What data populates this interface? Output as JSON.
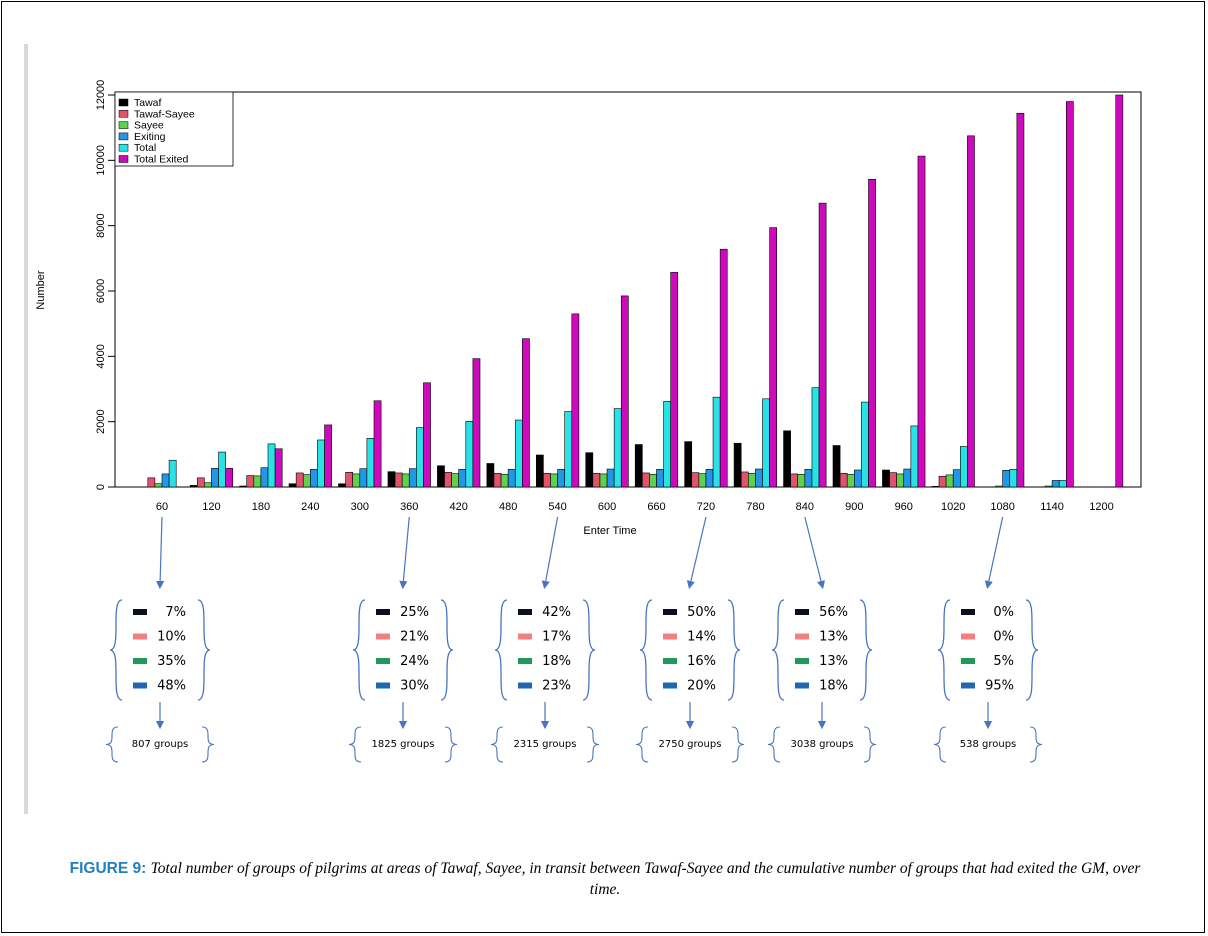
{
  "chart_data": {
    "type": "bar",
    "xlabel": "Enter Time",
    "ylabel": "Number",
    "ylim": [
      0,
      12000
    ],
    "yticks": [
      0,
      2000,
      4000,
      6000,
      8000,
      10000,
      12000
    ],
    "legend_position": "top-left",
    "categories": [
      "60",
      "120",
      "180",
      "240",
      "300",
      "360",
      "420",
      "480",
      "540",
      "600",
      "660",
      "720",
      "780",
      "840",
      "900",
      "960",
      "1020",
      "1080",
      "1140",
      "1200"
    ],
    "series": [
      {
        "name": "Tawaf",
        "color": "#000000",
        "values": [
          0,
          50,
          30,
          100,
          100,
          470,
          650,
          720,
          980,
          1050,
          1300,
          1390,
          1340,
          1720,
          1270,
          520,
          20,
          0,
          0,
          0
        ]
      },
      {
        "name": "Tawaf-Sayee",
        "color": "#df536b",
        "values": [
          280,
          280,
          350,
          430,
          450,
          430,
          450,
          420,
          420,
          420,
          430,
          440,
          460,
          400,
          420,
          440,
          330,
          0,
          0,
          0
        ]
      },
      {
        "name": "Sayee",
        "color": "#61d04f",
        "values": [
          100,
          130,
          340,
          380,
          400,
          400,
          410,
          390,
          400,
          400,
          390,
          410,
          420,
          390,
          390,
          400,
          370,
          30,
          30,
          0
        ]
      },
      {
        "name": "Exiting",
        "color": "#2297e6",
        "values": [
          400,
          570,
          590,
          540,
          560,
          560,
          540,
          540,
          540,
          550,
          540,
          540,
          550,
          540,
          520,
          550,
          530,
          510,
          200,
          0
        ]
      },
      {
        "name": "Total",
        "color": "#28e2e5",
        "values": [
          820,
          1070,
          1320,
          1440,
          1490,
          1820,
          2010,
          2050,
          2310,
          2400,
          2620,
          2750,
          2700,
          3040,
          2600,
          1870,
          1240,
          540,
          200,
          0
        ]
      },
      {
        "name": "Total Exited",
        "color": "#cd0bbc",
        "values": [
          0,
          570,
          1170,
          1900,
          2640,
          3190,
          3930,
          4540,
          5300,
          5850,
          6570,
          7280,
          7940,
          8690,
          9420,
          10130,
          10750,
          11440,
          11800,
          12000
        ]
      }
    ],
    "annotations": [
      {
        "category": "60",
        "percents": [
          "7%",
          "10%",
          "35%",
          "48%"
        ],
        "groups": "807 groups"
      },
      {
        "category": "360",
        "percents": [
          "25%",
          "21%",
          "24%",
          "30%"
        ],
        "groups": "1825 groups"
      },
      {
        "category": "540",
        "percents": [
          "42%",
          "17%",
          "18%",
          "23%"
        ],
        "groups": "2315 groups"
      },
      {
        "category": "720",
        "percents": [
          "50%",
          "14%",
          "16%",
          "20%"
        ],
        "groups": "2750 groups"
      },
      {
        "category": "840",
        "percents": [
          "56%",
          "13%",
          "13%",
          "18%"
        ],
        "groups": "3038 groups"
      },
      {
        "category": "1080",
        "percents": [
          "0%",
          "0%",
          "5%",
          "95%"
        ],
        "groups": "538 groups"
      }
    ],
    "annotation_colors": [
      "#0b1020",
      "#f28080",
      "#1f9a5a",
      "#1f68b0"
    ]
  },
  "caption": {
    "label": "FIGURE 9:",
    "text": "Total number of groups of pilgrims at areas of Tawaf, Sayee, in transit between Tawaf-Sayee and the cumulative number of groups that had exited the GM, over time."
  }
}
